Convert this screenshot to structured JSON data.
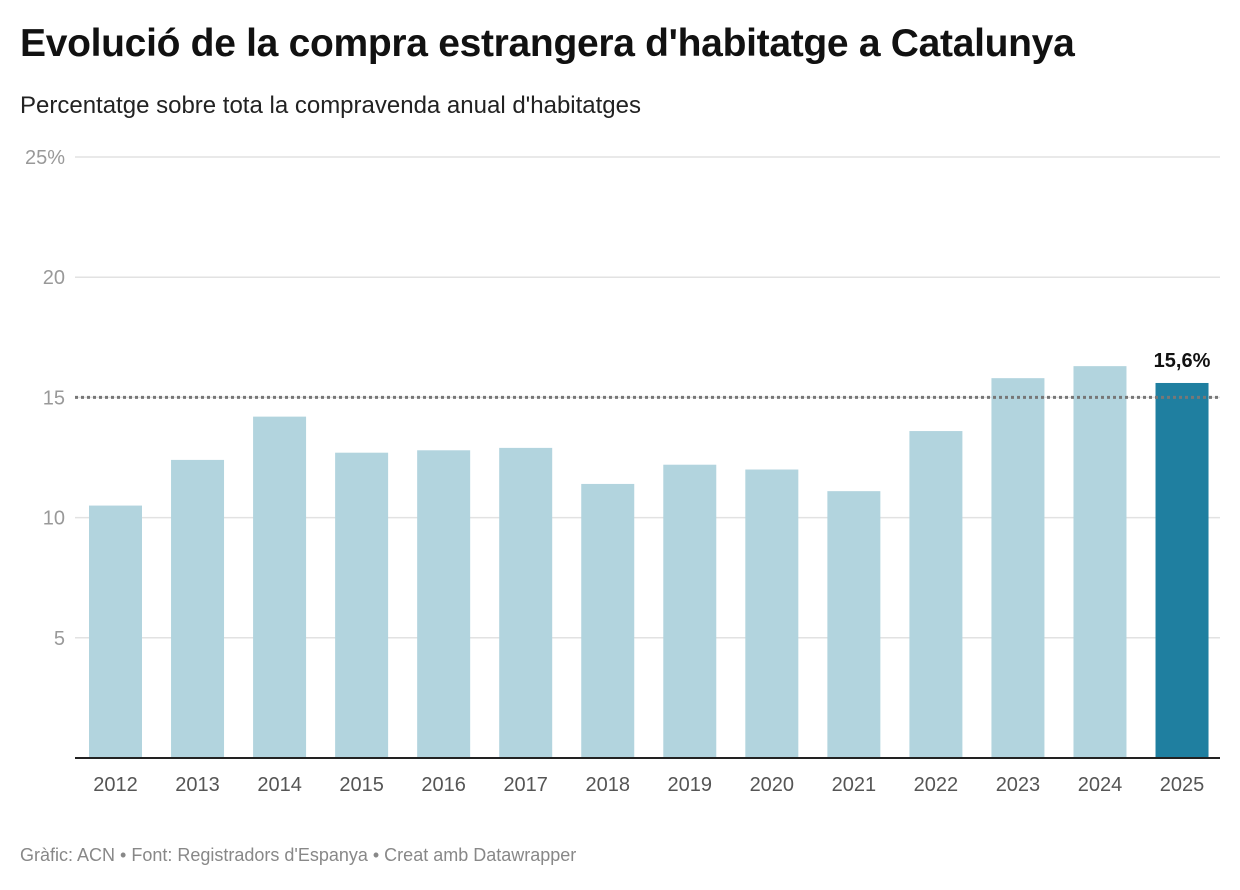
{
  "chart_data": {
    "type": "bar",
    "title": "Evolució de la compra estrangera d'habitatge a Catalunya",
    "subtitle": "Percentatge sobre tota la compravenda anual d'habitatges",
    "categories": [
      "2012",
      "2013",
      "2014",
      "2015",
      "2016",
      "2017",
      "2018",
      "2019",
      "2020",
      "2021",
      "2022",
      "2023",
      "2024",
      "2025"
    ],
    "values": [
      10.5,
      12.4,
      14.2,
      12.7,
      12.8,
      12.9,
      11.4,
      12.2,
      12.0,
      11.1,
      13.6,
      15.8,
      16.3,
      15.6
    ],
    "ylim": [
      0,
      25
    ],
    "yticks": [
      5,
      10,
      15,
      20,
      25
    ],
    "ytick_labels": [
      "5",
      "10",
      "15",
      "20",
      "25%"
    ],
    "reference_line": 15,
    "highlight_index": 13,
    "highlight_label": "15,6%",
    "colors": {
      "bar": "#b2d4de",
      "highlight": "#1f7fa0",
      "grid": "#e2e2e2",
      "reference": "#777777"
    },
    "grid": true,
    "xlabel": "",
    "ylabel": ""
  },
  "footer": "Gràfic: ACN • Font: Registradors d'Espanya • Creat amb Datawrapper"
}
